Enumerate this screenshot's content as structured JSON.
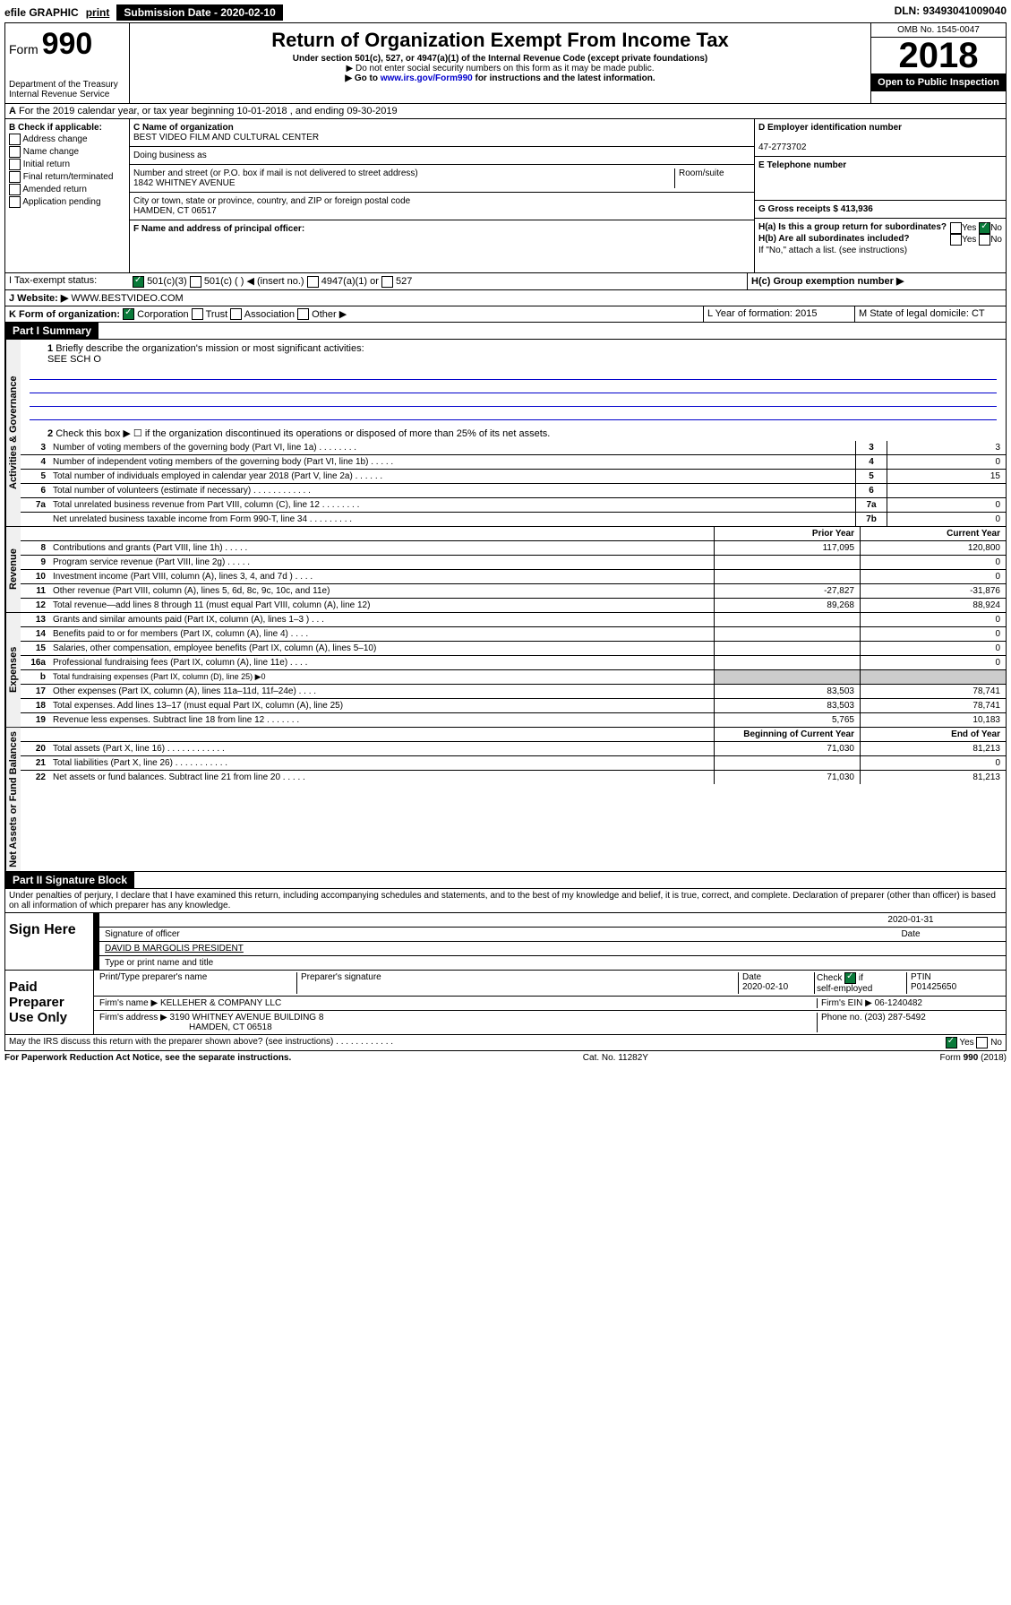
{
  "topbar": {
    "efile": "efile GRAPHIC",
    "print": "print",
    "submission_label": "Submission Date - 2020-02-10",
    "dln": "DLN: 93493041009040"
  },
  "header": {
    "form_prefix": "Form",
    "form_number": "990",
    "dept": "Department of the Treasury\nInternal Revenue Service",
    "title": "Return of Organization Exempt From Income Tax",
    "subtitle": "Under section 501(c), 527, or 4947(a)(1) of the Internal Revenue Code (except private foundations)",
    "note1": "▶ Do not enter social security numbers on this form as it may be made public.",
    "note2_pre": "▶ Go to ",
    "note2_link": "www.irs.gov/Form990",
    "note2_post": " for instructions and the latest information.",
    "omb": "OMB No. 1545-0047",
    "year": "2018",
    "inspection": "Open to Public Inspection"
  },
  "lineA": "For the 2019 calendar year, or tax year beginning 10-01-2018    , and ending 09-30-2019",
  "boxB": {
    "label": "B Check if applicable:",
    "addr": "Address change",
    "name": "Name change",
    "initial": "Initial return",
    "final": "Final return/terminated",
    "amended": "Amended return",
    "app": "Application pending"
  },
  "entity": {
    "c_label": "C Name of organization",
    "c_name": "BEST VIDEO FILM AND CULTURAL CENTER",
    "dba": "Doing business as",
    "street_label": "Number and street (or P.O. box if mail is not delivered to street address)",
    "street": "1842 WHITNEY AVENUE",
    "room_label": "Room/suite",
    "city_label": "City or town, state or province, country, and ZIP or foreign postal code",
    "city": "HAMDEN, CT  06517",
    "f_label": "F Name and address of principal officer:",
    "d_label": "D Employer identification number",
    "d_ein": "47-2773702",
    "e_label": "E Telephone number",
    "g_label": "G Gross receipts $ 413,936",
    "ha": "H(a)  Is this a group return for subordinates?",
    "hb": "H(b)  Are all subordinates included?",
    "hb_note": "If \"No,\" attach a list. (see instructions)",
    "hc": "H(c)  Group exemption number ▶",
    "yes": "Yes",
    "no": "No"
  },
  "rowI": {
    "label": "I    Tax-exempt status:",
    "o1": "501(c)(3)",
    "o2": "501(c) (   ) ◀ (insert no.)",
    "o3": "4947(a)(1) or",
    "o4": "527"
  },
  "rowJ": {
    "label": "J    Website: ▶",
    "value": "WWW.BESTVIDEO.COM"
  },
  "rowK": {
    "label": "K Form of organization:",
    "corp": "Corporation",
    "trust": "Trust",
    "assoc": "Association",
    "other": "Other ▶",
    "l_label": "L Year of formation: 2015",
    "m_label": "M State of legal domicile: CT"
  },
  "part1": {
    "header": "Part I      Summary",
    "q1": "Briefly describe the organization's mission or most significant activities:",
    "q1v": "SEE SCH O",
    "q2": "Check this box ▶ ☐  if the organization discontinued its operations or disposed of more than 25% of its net assets.",
    "rows_gov": [
      {
        "n": "3",
        "d": "Number of voting members of the governing body (Part VI, line 1a)   .    .    .    .    .    .    .    .",
        "b": "3",
        "v": "3"
      },
      {
        "n": "4",
        "d": "Number of independent voting members of the governing body (Part VI, line 1b)  .    .    .    .    .",
        "b": "4",
        "v": "0"
      },
      {
        "n": "5",
        "d": "Total number of individuals employed in calendar year 2018 (Part V, line 2a)  .    .    .    .    .    .",
        "b": "5",
        "v": "15"
      },
      {
        "n": "6",
        "d": "Total number of volunteers (estimate if necessary)  .    .    .    .    .    .    .    .    .    .    .    .",
        "b": "6",
        "v": ""
      },
      {
        "n": "7a",
        "d": "Total unrelated business revenue from Part VIII, column (C), line 12  .    .    .    .    .    .    .    .",
        "b": "7a",
        "v": "0"
      },
      {
        "n": "",
        "d": "Net unrelated business taxable income from Form 990-T, line 34   .    .    .    .    .    .    .    .    .",
        "b": "7b",
        "v": "0"
      }
    ],
    "col_prior": "Prior Year",
    "col_current": "Current Year",
    "rows_rev": [
      {
        "n": "8",
        "d": "Contributions and grants (Part VIII, line 1h)  .    .    .    .    .",
        "p": "117,095",
        "c": "120,800"
      },
      {
        "n": "9",
        "d": "Program service revenue (Part VIII, line 2g)   .    .    .    .    .",
        "p": "",
        "c": "0"
      },
      {
        "n": "10",
        "d": "Investment income (Part VIII, column (A), lines 3, 4, and 7d )  .    .    .    .",
        "p": "",
        "c": "0"
      },
      {
        "n": "11",
        "d": "Other revenue (Part VIII, column (A), lines 5, 6d, 8c, 9c, 10c, and 11e)",
        "p": "-27,827",
        "c": "-31,876"
      },
      {
        "n": "12",
        "d": "Total revenue—add lines 8 through 11 (must equal Part VIII, column (A), line 12)",
        "p": "89,268",
        "c": "88,924"
      }
    ],
    "rows_exp": [
      {
        "n": "13",
        "d": "Grants and similar amounts paid (Part IX, column (A), lines 1–3 )  .    .    .",
        "p": "",
        "c": "0"
      },
      {
        "n": "14",
        "d": "Benefits paid to or for members (Part IX, column (A), line 4)  .    .    .    .",
        "p": "",
        "c": "0"
      },
      {
        "n": "15",
        "d": "Salaries, other compensation, employee benefits (Part IX, column (A), lines 5–10)",
        "p": "",
        "c": "0"
      },
      {
        "n": "16a",
        "d": "Professional fundraising fees (Part IX, column (A), line 11e)  .    .    .    .",
        "p": "",
        "c": "0"
      },
      {
        "n": "b",
        "d": "Total fundraising expenses (Part IX, column (D), line 25) ▶0",
        "p": "—",
        "c": "—"
      },
      {
        "n": "17",
        "d": "Other expenses (Part IX, column (A), lines 11a–11d, 11f–24e)  .    .    .    .",
        "p": "83,503",
        "c": "78,741"
      },
      {
        "n": "18",
        "d": "Total expenses. Add lines 13–17 (must equal Part IX, column (A), line 25)",
        "p": "83,503",
        "c": "78,741"
      },
      {
        "n": "19",
        "d": "Revenue less expenses. Subtract line 18 from line 12  .    .    .    .    .    .    .",
        "p": "5,765",
        "c": "10,183"
      }
    ],
    "col_begin": "Beginning of Current Year",
    "col_end": "End of Year",
    "rows_net": [
      {
        "n": "20",
        "d": "Total assets (Part X, line 16)  .    .    .    .    .    .    .    .    .    .    .    .",
        "p": "71,030",
        "c": "81,213"
      },
      {
        "n": "21",
        "d": "Total liabilities (Part X, line 26)   .    .    .    .    .    .    .    .    .    .    .",
        "p": "",
        "c": "0"
      },
      {
        "n": "22",
        "d": "Net assets or fund balances. Subtract line 21 from line 20  .    .    .    .    .",
        "p": "71,030",
        "c": "81,213"
      }
    ],
    "vlabels": {
      "gov": "Activities & Governance",
      "rev": "Revenue",
      "exp": "Expenses",
      "net": "Net Assets or Fund Balances"
    }
  },
  "part2": {
    "header": "Part II      Signature Block",
    "perjury": "Under penalties of perjury, I declare that I have examined this return, including accompanying schedules and statements, and to the best of my knowledge and belief, it is true, correct, and complete. Declaration of preparer (other than officer) is based on all information of which preparer has any knowledge.",
    "sign_here": "Sign Here",
    "sig_date": "2020-01-31",
    "sig_officer": "Signature of officer",
    "date_lbl": "Date",
    "officer_name": "DAVID B MARGOLIS PRESIDENT",
    "officer_sub": "Type or print name and title",
    "paid": "Paid Preparer Use Only",
    "prep_name_lbl": "Print/Type preparer's name",
    "prep_sig_lbl": "Preparer's signature",
    "prep_date": "2020-02-10",
    "check_lbl": "Check",
    "self_emp": "self-employed",
    "ptin_lbl": "PTIN",
    "ptin": "P01425650",
    "firm_lbl": "Firm's name    ▶",
    "firm": "KELLEHER & COMPANY LLC",
    "firm_ein_lbl": "Firm's EIN ▶ 06-1240482",
    "firm_addr_lbl": "Firm's address ▶",
    "firm_addr": "3190 WHITNEY AVENUE BUILDING 8",
    "firm_city": "HAMDEN, CT  06518",
    "phone_lbl": "Phone no. (203) 287-5492",
    "discuss": "May the IRS discuss this return with the preparer shown above? (see instructions)   .    .    .    .    .    .    .    .    .    .    .    ."
  },
  "footer": {
    "pra": "For Paperwork Reduction Act Notice, see the separate instructions.",
    "cat": "Cat. No. 11282Y",
    "form": "Form 990 (2018)"
  }
}
